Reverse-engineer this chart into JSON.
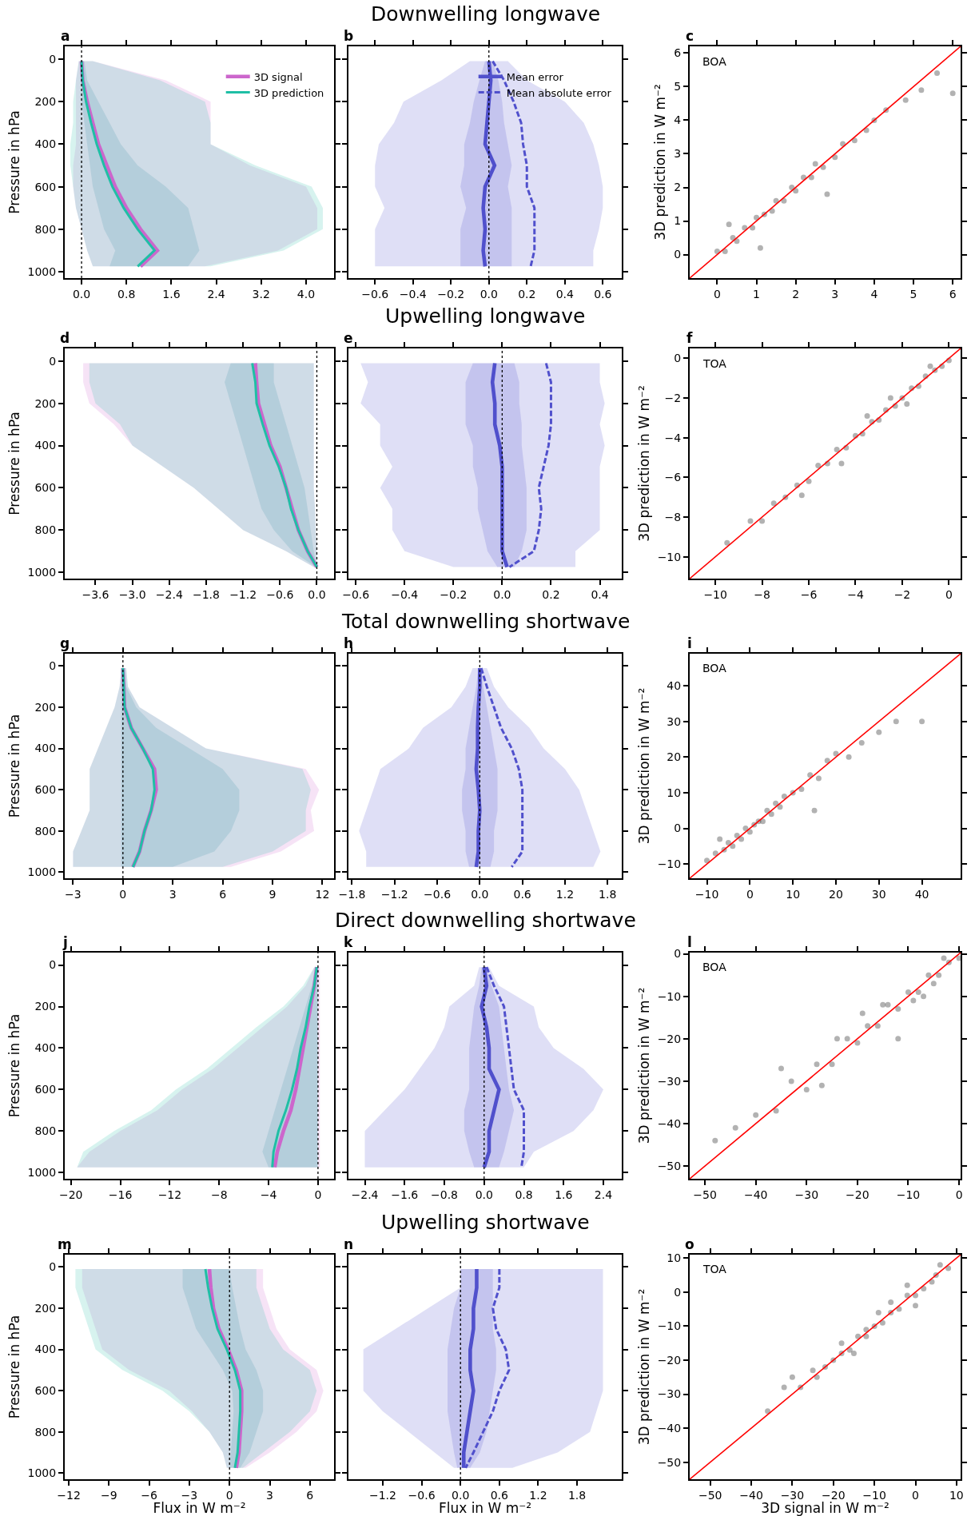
{
  "chart_data": [
    {
      "type": "line",
      "orientation": "horizontal",
      "annotations": [
        "a"
      ],
      "ylabel": "Pressure in hPa",
      "legend": "top right",
      "x": [
        10,
        100,
        200,
        300,
        400,
        500,
        600,
        700,
        800,
        900,
        975
      ],
      "xlim": [
        -0.3,
        4.5
      ],
      "xticks": [
        {
          "value": 0,
          "label": "0.0"
        },
        0.8,
        1.6,
        2.4,
        3.2,
        {
          "value": 4,
          "label": "4.0"
        }
      ],
      "ylim": [
        1030,
        -60
      ],
      "yticks": [
        0,
        200,
        400,
        600,
        800,
        1000
      ],
      "ref_lines": [
        {
          "axis": "x",
          "value": 0,
          "color": "#000000",
          "line_style": "dotted"
        }
      ],
      "series": [
        {
          "name": "3D signal",
          "color": "#cc66cc",
          "values": [
            0.0,
            0.02,
            0.1,
            0.2,
            0.3,
            0.45,
            0.6,
            0.8,
            1.05,
            1.35,
            1.05
          ],
          "lower": [
            -0.05,
            -0.1,
            -0.1,
            -0.1,
            -0.1,
            -0.15,
            -0.15,
            -0.1,
            0.0,
            0.1,
            0.2
          ],
          "upper": [
            0.2,
            1.5,
            2.3,
            2.3,
            2.3,
            3.0,
            4.0,
            4.2,
            4.2,
            3.5,
            2.2
          ]
        },
        {
          "name": "3D prediction",
          "color": "#1fbfa5",
          "values": [
            0.0,
            0.02,
            0.08,
            0.17,
            0.27,
            0.4,
            0.55,
            0.75,
            1.0,
            1.3,
            1.0
          ],
          "lower": [
            -0.05,
            -0.1,
            -0.15,
            -0.15,
            -0.2,
            -0.2,
            -0.15,
            -0.1,
            0.0,
            0.1,
            0.2
          ],
          "upper": [
            0.2,
            1.4,
            2.2,
            2.3,
            2.3,
            3.1,
            4.1,
            4.3,
            4.3,
            3.6,
            2.3
          ]
        },
        {
          "color": "#3f8fa8",
          "values": [
            null,
            null,
            null,
            null,
            null,
            null,
            null,
            null,
            null,
            null,
            null
          ],
          "lower": [
            0.0,
            0.0,
            0.0,
            0.05,
            0.1,
            0.15,
            0.2,
            0.3,
            0.4,
            0.6,
            0.5
          ],
          "upper": [
            0.05,
            0.1,
            0.3,
            0.5,
            0.7,
            1.0,
            1.5,
            1.9,
            2.0,
            2.1,
            1.9
          ]
        }
      ]
    },
    {
      "type": "line",
      "orientation": "horizontal",
      "title": "Downwelling longwave",
      "annotations": [
        "b"
      ],
      "tick_labels": "x",
      "legend": "top right",
      "x": [
        10,
        100,
        200,
        300,
        400,
        500,
        600,
        700,
        800,
        900,
        975
      ],
      "xlim": [
        -0.74,
        0.7
      ],
      "xticks": [
        -0.6,
        -0.4,
        -0.2,
        {
          "value": 0,
          "label": "0.0"
        },
        0.2,
        0.4,
        0.6
      ],
      "ylim": [
        1030,
        -60
      ],
      "yticks": [
        0,
        200,
        400,
        600,
        800,
        1000
      ],
      "ref_lines": [
        {
          "axis": "x",
          "value": 0,
          "color": "#000000",
          "line_style": "dotted"
        }
      ],
      "series": [
        {
          "name": "Mean error",
          "color": "#5050cc",
          "values": [
            0.0,
            0.01,
            0.0,
            -0.01,
            -0.02,
            0.03,
            -0.02,
            -0.03,
            -0.02,
            -0.03,
            -0.02
          ],
          "lower": [
            -0.1,
            -0.25,
            -0.45,
            -0.5,
            -0.58,
            -0.6,
            -0.6,
            -0.55,
            -0.6,
            -0.6,
            -0.6
          ],
          "upper": [
            0.1,
            0.2,
            0.4,
            0.5,
            0.55,
            0.58,
            0.6,
            0.6,
            0.58,
            0.55,
            0.55
          ]
        },
        {
          "name": "Mean absolute error",
          "color": "#5050cc",
          "line_style": "dashed",
          "values": [
            0.02,
            0.08,
            0.13,
            0.17,
            0.18,
            0.2,
            0.2,
            0.24,
            0.24,
            0.24,
            0.22
          ]
        },
        {
          "color": "#5050cc",
          "values": [
            null,
            null,
            null,
            null,
            null,
            null,
            null,
            null,
            null,
            null,
            null
          ],
          "lower": [
            -0.02,
            -0.05,
            -0.08,
            -0.1,
            -0.13,
            -0.13,
            -0.15,
            -0.12,
            -0.15,
            -0.15,
            -0.15
          ],
          "upper": [
            0.02,
            0.05,
            0.07,
            0.08,
            0.1,
            0.12,
            0.1,
            0.12,
            0.12,
            0.12,
            0.12
          ]
        }
      ]
    },
    {
      "type": "scatter",
      "annotations": [
        "c",
        "BOA"
      ],
      "ylabel": "3D prediction in W m⁻²",
      "marker": "circle",
      "xlim": [
        -0.7,
        6.2
      ],
      "ylim": [
        -0.7,
        6.2
      ],
      "xticks": [
        0,
        1,
        2,
        3,
        4,
        5,
        6
      ],
      "yticks": [
        0,
        1,
        2,
        3,
        4,
        5,
        6
      ],
      "series": [
        {
          "color": "#000000",
          "x": [
            0,
            0.2,
            0.4,
            0.5,
            0.7,
            0.9,
            1.0,
            1.2,
            1.4,
            1.5,
            1.7,
            1.9,
            2.0,
            2.2,
            2.4,
            2.5,
            2.7,
            3.0,
            3.2,
            3.5,
            3.8,
            4.0,
            4.3,
            4.8,
            5.2,
            5.6,
            6.0,
            0.3,
            1.1,
            2.8
          ],
          "values": [
            0.1,
            0.1,
            0.5,
            0.4,
            0.8,
            0.8,
            1.1,
            1.2,
            1.3,
            1.6,
            1.6,
            2.0,
            1.9,
            2.3,
            2.3,
            2.7,
            2.6,
            2.9,
            3.3,
            3.4,
            3.7,
            4.0,
            4.3,
            4.6,
            4.9,
            5.4,
            4.8,
            0.9,
            0.2,
            1.8
          ]
        },
        {
          "type": "line",
          "marker": "none",
          "color": "#ff0000",
          "x": [
            -0.7,
            6.2
          ],
          "values": [
            -0.7,
            6.2
          ]
        }
      ]
    },
    {
      "type": "line",
      "orientation": "horizontal",
      "annotations": [
        "d"
      ],
      "ylabel": "Pressure in hPa",
      "x": [
        10,
        100,
        200,
        300,
        400,
        500,
        600,
        700,
        800,
        900,
        975
      ],
      "xlim": [
        -4.1,
        0.28
      ],
      "xticks": [
        -3.6,
        {
          "value": -3,
          "label": "−3.0"
        },
        -2.4,
        -1.8,
        -1.2,
        -0.6,
        {
          "value": 0,
          "label": "0.0"
        }
      ],
      "ylim": [
        1030,
        -60
      ],
      "yticks": [
        0,
        200,
        400,
        600,
        800,
        1000
      ],
      "ref_lines": [
        {
          "axis": "x",
          "value": 0,
          "color": "#000000",
          "line_style": "dotted"
        }
      ],
      "series": [
        {
          "color": "#cc66cc",
          "values": [
            -1.0,
            -0.98,
            -0.95,
            -0.85,
            -0.75,
            -0.6,
            -0.5,
            -0.4,
            -0.3,
            -0.15,
            0.0
          ],
          "lower": [
            -3.8,
            -3.8,
            -3.7,
            -3.3,
            -3.0,
            -2.5,
            -2.0,
            -1.6,
            -1.2,
            -0.5,
            -0.05
          ],
          "upper": [
            -0.05,
            -0.05,
            -0.05,
            -0.05,
            -0.05,
            -0.05,
            -0.05,
            -0.03,
            -0.02,
            0.0,
            0.0
          ]
        },
        {
          "color": "#1fbfa5",
          "values": [
            -1.05,
            -1.0,
            -0.98,
            -0.88,
            -0.77,
            -0.62,
            -0.5,
            -0.42,
            -0.3,
            -0.15,
            0.0
          ],
          "lower": [
            -3.7,
            -3.7,
            -3.6,
            -3.2,
            -3.0,
            -2.5,
            -2.0,
            -1.6,
            -1.2,
            -0.5,
            -0.05
          ],
          "upper": [
            -0.05,
            -0.05,
            -0.05,
            -0.05,
            -0.05,
            -0.05,
            -0.05,
            -0.03,
            -0.02,
            0.0,
            0.0
          ]
        },
        {
          "color": "#3f8fa8",
          "values": [
            null,
            null,
            null,
            null,
            null,
            null,
            null,
            null,
            null,
            null,
            null
          ],
          "lower": [
            -1.4,
            -1.5,
            -1.4,
            -1.3,
            -1.2,
            -1.1,
            -1.0,
            -0.9,
            -0.7,
            -0.4,
            -0.02
          ],
          "upper": [
            -0.7,
            -0.7,
            -0.6,
            -0.5,
            -0.4,
            -0.3,
            -0.2,
            -0.15,
            -0.1,
            -0.05,
            0.0
          ]
        }
      ]
    },
    {
      "type": "line",
      "orientation": "horizontal",
      "title": "Upwelling longwave",
      "annotations": [
        "e"
      ],
      "tick_labels": "x",
      "x": [
        10,
        100,
        200,
        300,
        400,
        500,
        600,
        700,
        800,
        900,
        975
      ],
      "xlim": [
        -0.63,
        0.49
      ],
      "xticks": [
        -0.6,
        -0.4,
        -0.2,
        {
          "value": 0,
          "label": "0.0"
        },
        0.2,
        0.4
      ],
      "ylim": [
        1030,
        -60
      ],
      "yticks": [
        0,
        200,
        400,
        600,
        800,
        1000
      ],
      "ref_lines": [
        {
          "axis": "x",
          "value": 0,
          "color": "#000000",
          "line_style": "dotted"
        }
      ],
      "series": [
        {
          "color": "#5050cc",
          "values": [
            -0.03,
            -0.04,
            -0.03,
            -0.03,
            -0.01,
            0.0,
            0.0,
            0.0,
            0.0,
            0.0,
            0.02
          ],
          "lower": [
            -0.58,
            -0.55,
            -0.58,
            -0.5,
            -0.5,
            -0.45,
            -0.5,
            -0.45,
            -0.45,
            -0.4,
            -0.2
          ],
          "upper": [
            0.4,
            0.4,
            0.42,
            0.4,
            0.42,
            0.4,
            0.4,
            0.4,
            0.4,
            0.3,
            0.3
          ]
        },
        {
          "color": "#5050cc",
          "line_style": "dashed",
          "values": [
            0.18,
            0.2,
            0.2,
            0.2,
            0.19,
            0.17,
            0.15,
            0.16,
            0.15,
            0.13,
            0.03
          ]
        },
        {
          "color": "#5050cc",
          "values": [
            null,
            null,
            null,
            null,
            null,
            null,
            null,
            null,
            null,
            null,
            null
          ],
          "lower": [
            -0.12,
            -0.15,
            -0.15,
            -0.15,
            -0.12,
            -0.12,
            -0.1,
            -0.1,
            -0.08,
            -0.06,
            -0.02
          ],
          "upper": [
            0.05,
            0.07,
            0.07,
            0.08,
            0.08,
            0.09,
            0.1,
            0.1,
            0.1,
            0.08,
            0.05
          ]
        }
      ]
    },
    {
      "type": "scatter",
      "annotations": [
        "f",
        "TOA"
      ],
      "ylabel": "3D prediction in W m⁻²",
      "marker": "circle",
      "xlim": [
        -11.1,
        0.5
      ],
      "ylim": [
        -11.1,
        0.5
      ],
      "xticks": [
        -10,
        -8,
        -6,
        -4,
        -2,
        0
      ],
      "yticks": [
        -10,
        -8,
        -6,
        -4,
        -2,
        0
      ],
      "series": [
        {
          "color": "#000000",
          "x": [
            0,
            -0.3,
            -0.6,
            -1.0,
            -1.3,
            -1.6,
            -2.0,
            -2.3,
            -2.7,
            -3.0,
            -3.3,
            -3.7,
            -4.0,
            -4.4,
            -4.8,
            -5.2,
            -5.6,
            -6.0,
            -6.5,
            -7.0,
            -7.5,
            -8.0,
            -8.5,
            -9.5,
            -6.3,
            -3.5,
            -1.8,
            -0.8,
            -2.5,
            -4.6
          ],
          "values": [
            -0.1,
            -0.4,
            -0.6,
            -0.9,
            -1.4,
            -1.5,
            -2.0,
            -2.4,
            -2.6,
            -3.1,
            -3.2,
            -3.8,
            -3.9,
            -4.5,
            -4.6,
            -5.3,
            -5.4,
            -6.2,
            -6.4,
            -7.0,
            -7.3,
            -8.2,
            -8.2,
            -9.3,
            -6.9,
            -2.9,
            -2.3,
            -0.4,
            -2.0,
            -5.3
          ]
        },
        {
          "type": "line",
          "marker": "none",
          "color": "#ff0000",
          "x": [
            -11.1,
            0.5
          ],
          "values": [
            -11.1,
            0.5
          ]
        }
      ]
    },
    {
      "type": "line",
      "orientation": "horizontal",
      "annotations": [
        "g"
      ],
      "ylabel": "Pressure in hPa",
      "x": [
        10,
        100,
        200,
        300,
        400,
        500,
        600,
        700,
        800,
        900,
        975
      ],
      "xlim": [
        -3.5,
        12.7
      ],
      "xticks": [
        -3,
        0,
        3,
        6,
        9,
        12
      ],
      "ylim": [
        1030,
        -60
      ],
      "yticks": [
        0,
        200,
        400,
        600,
        800,
        1000
      ],
      "ref_lines": [
        {
          "axis": "x",
          "value": 0,
          "color": "#000000",
          "line_style": "dotted"
        }
      ],
      "series": [
        {
          "color": "#cc66cc",
          "values": [
            0.0,
            0.05,
            0.1,
            0.5,
            1.2,
            1.9,
            2.0,
            1.7,
            1.3,
            1.0,
            0.6
          ],
          "lower": [
            -0.1,
            -0.2,
            -0.5,
            -1.0,
            -1.5,
            -2.0,
            -2.0,
            -2.0,
            -2.5,
            -3.0,
            -3.0
          ],
          "upper": [
            0.2,
            0.3,
            1.0,
            3.0,
            5.0,
            11.0,
            11.8,
            11.3,
            11.5,
            9.5,
            6.5
          ]
        },
        {
          "color": "#1fbfa5",
          "values": [
            0.0,
            0.05,
            0.1,
            0.5,
            1.2,
            1.8,
            1.9,
            1.7,
            1.3,
            1.0,
            0.6
          ],
          "lower": [
            -0.1,
            -0.2,
            -0.5,
            -1.0,
            -1.5,
            -2.0,
            -2.0,
            -2.0,
            -2.5,
            -3.0,
            -3.0
          ],
          "upper": [
            0.2,
            0.3,
            1.0,
            3.0,
            5.0,
            10.8,
            11.3,
            11.0,
            11.0,
            9.0,
            6.0
          ]
        },
        {
          "color": "#3f8fa8",
          "values": [
            null,
            null,
            null,
            null,
            null,
            null,
            null,
            null,
            null,
            null,
            null
          ],
          "lower": [
            -0.1,
            -0.1,
            -0.1,
            -0.1,
            -0.1,
            -0.1,
            -0.1,
            -0.1,
            -0.1,
            -0.1,
            -0.1
          ],
          "upper": [
            0.1,
            0.2,
            0.8,
            2.0,
            4.0,
            6.0,
            7.0,
            7.0,
            6.5,
            5.5,
            3.0
          ]
        }
      ]
    },
    {
      "type": "line",
      "orientation": "horizontal",
      "title": "Total downwelling shortwave",
      "annotations": [
        "h"
      ],
      "tick_labels": "x",
      "x": [
        10,
        100,
        200,
        300,
        400,
        500,
        600,
        700,
        800,
        900,
        975
      ],
      "xlim": [
        -1.85,
        2.0
      ],
      "xticks": [
        -1.8,
        -1.2,
        -0.6,
        {
          "value": 0,
          "label": "0.0"
        },
        0.6,
        1.2,
        1.8
      ],
      "ylim": [
        1030,
        -60
      ],
      "yticks": [
        0,
        200,
        400,
        600,
        800,
        1000
      ],
      "ref_lines": [
        {
          "axis": "x",
          "value": 0,
          "color": "#000000",
          "line_style": "dotted"
        }
      ],
      "series": [
        {
          "color": "#5050cc",
          "values": [
            0.0,
            0.0,
            -0.02,
            -0.03,
            -0.03,
            -0.05,
            -0.02,
            0.0,
            -0.02,
            -0.02,
            -0.05
          ],
          "lower": [
            -0.1,
            -0.2,
            -0.4,
            -0.8,
            -1.0,
            -1.4,
            -1.5,
            -1.6,
            -1.7,
            -1.6,
            -1.6
          ],
          "upper": [
            0.1,
            0.2,
            0.4,
            0.7,
            0.9,
            1.2,
            1.4,
            1.5,
            1.6,
            1.7,
            1.6
          ]
        },
        {
          "color": "#5050cc",
          "line_style": "dashed",
          "values": [
            0.02,
            0.1,
            0.2,
            0.3,
            0.45,
            0.55,
            0.6,
            0.6,
            0.6,
            0.6,
            0.45
          ]
        },
        {
          "color": "#5050cc",
          "values": [
            null,
            null,
            null,
            null,
            null,
            null,
            null,
            null,
            null,
            null,
            null
          ],
          "lower": [
            -0.02,
            -0.05,
            -0.1,
            -0.15,
            -0.2,
            -0.2,
            -0.25,
            -0.25,
            -0.2,
            -0.2,
            -0.15
          ],
          "upper": [
            0.02,
            0.05,
            0.1,
            0.15,
            0.2,
            0.25,
            0.25,
            0.25,
            0.2,
            0.2,
            0.15
          ]
        }
      ]
    },
    {
      "type": "scatter",
      "annotations": [
        "i",
        "BOA"
      ],
      "ylabel": "3D prediction in W m⁻²",
      "marker": "circle",
      "xlim": [
        -14,
        49
      ],
      "ylim": [
        -14,
        49
      ],
      "xticks": [
        -10,
        0,
        10,
        20,
        30,
        40
      ],
      "yticks": [
        -10,
        0,
        10,
        20,
        30,
        40
      ],
      "series": [
        {
          "color": "#000000",
          "x": [
            -10,
            -8,
            -6,
            -5,
            -4,
            -3,
            -2,
            -1,
            0,
            1,
            2,
            3,
            4,
            5,
            6,
            7,
            8,
            10,
            12,
            14,
            16,
            18,
            20,
            23,
            26,
            30,
            34,
            40,
            15,
            -7
          ],
          "values": [
            -9,
            -7,
            -6,
            -4,
            -5,
            -2,
            -3,
            0,
            -1,
            1,
            2,
            2,
            5,
            4,
            7,
            6,
            9,
            10,
            11,
            15,
            14,
            19,
            21,
            20,
            24,
            27,
            30,
            30,
            5,
            -3
          ]
        },
        {
          "type": "line",
          "marker": "none",
          "color": "#ff0000",
          "x": [
            -14,
            49
          ],
          "values": [
            -14,
            49
          ]
        }
      ]
    },
    {
      "type": "line",
      "orientation": "horizontal",
      "annotations": [
        "j"
      ],
      "ylabel": "Pressure in hPa",
      "x": [
        10,
        100,
        200,
        300,
        400,
        500,
        600,
        700,
        800,
        900,
        975
      ],
      "xlim": [
        -20.5,
        1.3
      ],
      "xticks": [
        -20,
        -16,
        -12,
        -8,
        -4,
        0
      ],
      "ylim": [
        1030,
        -60
      ],
      "yticks": [
        0,
        200,
        400,
        600,
        800,
        1000
      ],
      "ref_lines": [
        {
          "axis": "x",
          "value": 0,
          "color": "#000000",
          "line_style": "dotted"
        }
      ],
      "series": [
        {
          "color": "#cc66cc",
          "values": [
            -0.1,
            -0.3,
            -0.6,
            -0.9,
            -1.2,
            -1.5,
            -1.8,
            -2.2,
            -2.8,
            -3.3,
            -3.5
          ],
          "lower": [
            -0.3,
            -1.0,
            -2.5,
            -4.5,
            -6.5,
            -8.5,
            -11.0,
            -13.0,
            -16.0,
            -18.5,
            -19.5
          ],
          "upper": [
            0.15,
            0.15,
            0.15,
            0.15,
            0.15,
            0.15,
            0.15,
            0.15,
            0.15,
            0.15,
            0.15
          ]
        },
        {
          "color": "#1fbfa5",
          "values": [
            -0.1,
            -0.3,
            -0.7,
            -1.0,
            -1.4,
            -1.7,
            -2.1,
            -2.6,
            -3.2,
            -3.6,
            -3.7
          ],
          "lower": [
            -0.3,
            -1.2,
            -2.8,
            -5.0,
            -7.0,
            -9.0,
            -11.5,
            -13.5,
            -16.5,
            -19.0,
            -19.5
          ],
          "upper": [
            0.0,
            0.0,
            0.0,
            0.0,
            0.0,
            0.0,
            0.0,
            0.0,
            0.0,
            0.0,
            0.0
          ]
        },
        {
          "color": "#3f8fa8",
          "values": [
            null,
            null,
            null,
            null,
            null,
            null,
            null,
            null,
            null,
            null,
            null
          ],
          "lower": [
            -0.15,
            -0.5,
            -1.0,
            -1.5,
            -2.0,
            -2.5,
            -3.0,
            -3.5,
            -4.0,
            -4.5,
            -4.0
          ],
          "upper": [
            -0.05,
            -0.05,
            -0.05,
            -0.05,
            -0.05,
            -0.05,
            -0.05,
            -0.05,
            -0.05,
            -0.05,
            -0.05
          ]
        }
      ]
    },
    {
      "type": "line",
      "orientation": "horizontal",
      "title": "Direct downwelling shortwave",
      "annotations": [
        "k"
      ],
      "tick_labels": "x",
      "x": [
        10,
        100,
        200,
        300,
        400,
        500,
        600,
        700,
        800,
        900,
        975
      ],
      "xlim": [
        -2.73,
        2.77
      ],
      "xticks": [
        -2.4,
        -1.6,
        -0.8,
        {
          "value": 0,
          "label": "0.0"
        },
        0.8,
        1.6,
        2.4
      ],
      "ylim": [
        1030,
        -60
      ],
      "yticks": [
        0,
        200,
        400,
        600,
        800,
        1000
      ],
      "ref_lines": [
        {
          "axis": "x",
          "value": 0,
          "color": "#000000",
          "line_style": "dotted"
        }
      ],
      "series": [
        {
          "color": "#5050cc",
          "values": [
            0.0,
            0.05,
            -0.05,
            0.05,
            0.1,
            0.1,
            0.3,
            0.2,
            0.1,
            0.1,
            0.0
          ],
          "lower": [
            -0.1,
            -0.2,
            -0.7,
            -0.8,
            -1.0,
            -1.3,
            -1.6,
            -2.0,
            -2.4,
            -2.4,
            -2.4
          ],
          "upper": [
            0.1,
            0.3,
            1.0,
            1.1,
            1.4,
            2.0,
            2.4,
            2.2,
            1.8,
            1.0,
            0.8
          ]
        },
        {
          "color": "#5050cc",
          "line_style": "dashed",
          "values": [
            0.05,
            0.2,
            0.4,
            0.45,
            0.5,
            0.55,
            0.6,
            0.8,
            0.8,
            0.8,
            0.75
          ]
        },
        {
          "color": "#5050cc",
          "values": [
            null,
            null,
            null,
            null,
            null,
            null,
            null,
            null,
            null,
            null,
            null
          ],
          "lower": [
            -0.05,
            -0.1,
            -0.2,
            -0.25,
            -0.3,
            -0.3,
            -0.3,
            -0.4,
            -0.4,
            -0.3,
            -0.2
          ],
          "upper": [
            0.05,
            0.15,
            0.3,
            0.35,
            0.4,
            0.45,
            0.5,
            0.6,
            0.5,
            0.4,
            0.3
          ]
        }
      ]
    },
    {
      "type": "scatter",
      "annotations": [
        "l",
        "BOA"
      ],
      "ylabel": "3D prediction in W m⁻²",
      "marker": "circle",
      "xlim": [
        -53,
        0.3
      ],
      "ylim": [
        -53,
        0.3
      ],
      "xticks": [
        -50,
        -40,
        -30,
        -20,
        -10,
        0
      ],
      "yticks": [
        -50,
        -40,
        -30,
        -20,
        -10,
        0
      ],
      "series": [
        {
          "color": "#000000",
          "x": [
            0,
            -2,
            -4,
            -6,
            -8,
            -10,
            -12,
            -14,
            -16,
            -18,
            -20,
            -22,
            -25,
            -28,
            -30,
            -33,
            -36,
            -40,
            -44,
            -48,
            -3,
            -7,
            -15,
            -24,
            -35,
            -12,
            -19,
            -27,
            -5,
            -9
          ],
          "values": [
            -1,
            -2,
            -5,
            -5,
            -9,
            -9,
            -13,
            -12,
            -17,
            -17,
            -21,
            -20,
            -26,
            -26,
            -32,
            -30,
            -37,
            -38,
            -41,
            -44,
            -1,
            -10,
            -12,
            -20,
            -27,
            -20,
            -14,
            -31,
            -7,
            -11
          ]
        },
        {
          "type": "line",
          "marker": "none",
          "color": "#ff0000",
          "x": [
            -53,
            0.3
          ],
          "values": [
            -53,
            0.3
          ]
        }
      ]
    },
    {
      "type": "line",
      "orientation": "horizontal",
      "annotations": [
        "m"
      ],
      "ylabel": "Pressure in hPa",
      "xlabel": "Flux in W m⁻²",
      "x": [
        10,
        100,
        200,
        300,
        400,
        500,
        600,
        700,
        800,
        900,
        975
      ],
      "xlim": [
        -12.3,
        7.8
      ],
      "xticks": [
        -12,
        -9,
        -6,
        -3,
        0,
        3,
        6
      ],
      "ylim": [
        1030,
        -60
      ],
      "yticks": [
        0,
        200,
        400,
        600,
        800,
        1000
      ],
      "ref_lines": [
        {
          "axis": "x",
          "value": 0,
          "color": "#000000",
          "line_style": "dotted"
        }
      ],
      "series": [
        {
          "color": "#cc66cc",
          "values": [
            -1.5,
            -1.4,
            -1.2,
            -0.8,
            -0.1,
            0.5,
            0.9,
            0.9,
            0.8,
            0.7,
            0.5
          ],
          "lower": [
            -11.0,
            -11.0,
            -10.5,
            -10.0,
            -9.5,
            -7.5,
            -4.5,
            -2.8,
            -1.5,
            -0.5,
            -0.2
          ],
          "upper": [
            2.5,
            2.5,
            3.0,
            3.5,
            4.5,
            6.5,
            7.0,
            6.5,
            5.0,
            3.0,
            1.2
          ]
        },
        {
          "color": "#1fbfa5",
          "values": [
            -1.8,
            -1.6,
            -1.3,
            -0.9,
            -0.2,
            0.4,
            0.8,
            0.8,
            0.7,
            0.6,
            0.4
          ],
          "lower": [
            -11.5,
            -11.5,
            -11.0,
            -10.5,
            -10.0,
            -8.0,
            -5.0,
            -3.0,
            -1.5,
            -0.5,
            -0.2
          ],
          "upper": [
            2.0,
            2.0,
            2.5,
            3.0,
            4.0,
            6.0,
            6.5,
            6.0,
            4.5,
            2.5,
            1.0
          ]
        },
        {
          "color": "#3f8fa8",
          "values": [
            null,
            null,
            null,
            null,
            null,
            null,
            null,
            null,
            null,
            null,
            null
          ],
          "lower": [
            -3.5,
            -3.5,
            -3.0,
            -2.5,
            -1.5,
            -0.5,
            0.2,
            0.3,
            0.2,
            0.1,
            0.0
          ],
          "upper": [
            0.0,
            0.2,
            0.5,
            0.8,
            1.2,
            2.0,
            2.5,
            2.5,
            2.0,
            1.5,
            0.8
          ]
        }
      ]
    },
    {
      "type": "line",
      "orientation": "horizontal",
      "title": "Upwelling shortwave",
      "annotations": [
        "n"
      ],
      "xlabel": "Flux in W m⁻²",
      "tick_labels": "x",
      "x": [
        10,
        100,
        200,
        300,
        400,
        500,
        600,
        700,
        800,
        900,
        975
      ],
      "xlim": [
        -1.73,
        2.49
      ],
      "xticks": [
        -1.2,
        -0.6,
        {
          "value": 0,
          "label": "0.0"
        },
        0.6,
        1.2,
        1.8
      ],
      "ylim": [
        1030,
        -60
      ],
      "yticks": [
        0,
        200,
        400,
        600,
        800,
        1000
      ],
      "ref_lines": [
        {
          "axis": "x",
          "value": 0,
          "color": "#000000",
          "line_style": "dotted"
        }
      ],
      "series": [
        {
          "color": "#5050cc",
          "values": [
            0.25,
            0.25,
            0.2,
            0.2,
            0.15,
            0.15,
            0.2,
            0.15,
            0.1,
            0.05,
            0.05
          ],
          "lower": [
            0.0,
            0.0,
            -0.5,
            -1.0,
            -1.5,
            -1.5,
            -1.5,
            -1.2,
            -0.8,
            -0.4,
            -0.1
          ],
          "upper": [
            2.2,
            2.2,
            2.2,
            2.2,
            2.2,
            2.2,
            2.2,
            2.1,
            2.0,
            1.5,
            0.8
          ]
        },
        {
          "color": "#5050cc",
          "line_style": "dashed",
          "values": [
            0.6,
            0.6,
            0.5,
            0.55,
            0.7,
            0.75,
            0.6,
            0.5,
            0.35,
            0.2,
            0.08
          ]
        },
        {
          "color": "#5050cc",
          "values": [
            null,
            null,
            null,
            null,
            null,
            null,
            null,
            null,
            null,
            null,
            null
          ],
          "lower": [
            0.0,
            0.0,
            -0.1,
            -0.15,
            -0.2,
            -0.2,
            -0.2,
            -0.2,
            -0.15,
            -0.1,
            -0.05
          ],
          "upper": [
            0.5,
            0.5,
            0.5,
            0.5,
            0.55,
            0.55,
            0.5,
            0.45,
            0.4,
            0.3,
            0.15
          ]
        }
      ]
    },
    {
      "type": "scatter",
      "annotations": [
        "o",
        "TOA"
      ],
      "ylabel": "3D prediction in W m⁻²",
      "xlabel": "3D signal in W m⁻²",
      "marker": "circle",
      "xlim": [
        -55,
        11
      ],
      "ylim": [
        -55,
        11
      ],
      "xticks": [
        -50,
        -40,
        -30,
        -20,
        -10,
        0,
        10
      ],
      "yticks": [
        -50,
        -40,
        -30,
        -20,
        -10,
        0,
        10
      ],
      "series": [
        {
          "color": "#000000",
          "x": [
            8,
            5,
            2,
            0,
            -2,
            -4,
            -6,
            -8,
            -10,
            -12,
            -14,
            -16,
            -18,
            -20,
            -22,
            -25,
            -28,
            -32,
            -36,
            -2,
            4,
            -9,
            -15,
            -24,
            -30,
            -6,
            0,
            6,
            -12,
            -18
          ],
          "values": [
            7,
            5,
            1,
            -1,
            -1,
            -5,
            -6,
            -9,
            -10,
            -13,
            -13,
            -17,
            -18,
            -20,
            -22,
            -23,
            -28,
            -28,
            -35,
            2,
            3,
            -6,
            -18,
            -25,
            -25,
            -3,
            -4,
            8,
            -11,
            -15
          ]
        },
        {
          "type": "line",
          "marker": "none",
          "color": "#ff0000",
          "x": [
            -55,
            11
          ],
          "values": [
            -55,
            11
          ]
        }
      ]
    }
  ]
}
